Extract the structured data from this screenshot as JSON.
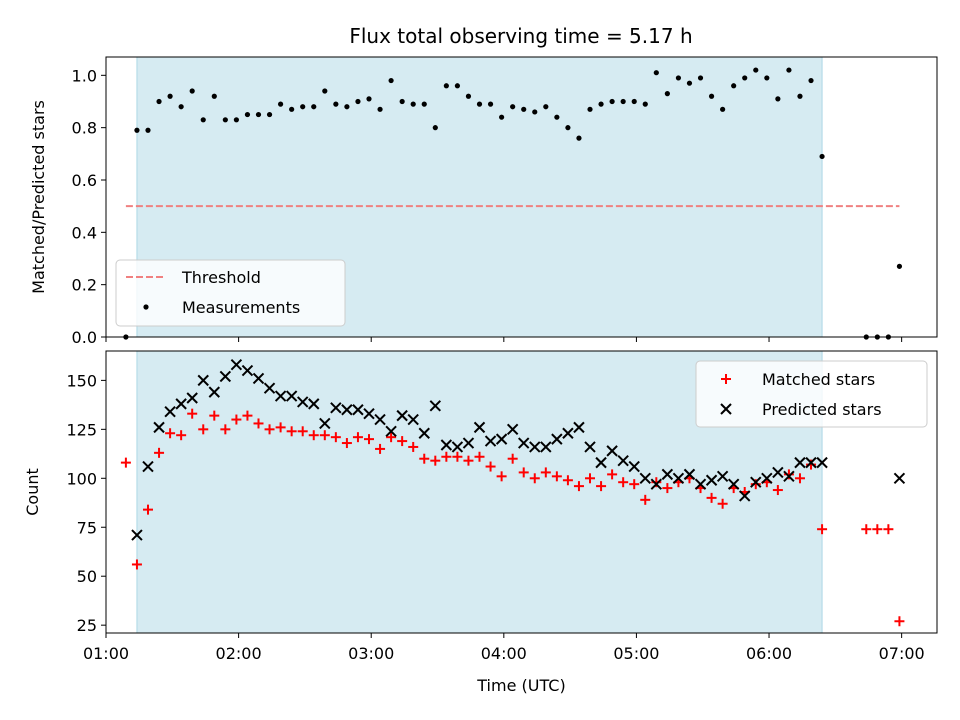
{
  "title": "Flux total observing time = 5.17 h",
  "colors": {
    "shade": "#add8e6",
    "threshold": "#f08080",
    "measurement": "#000000",
    "matched": "#ff0000",
    "predicted": "#000000"
  },
  "chart_data": [
    {
      "type": "scatter",
      "ylabel": "Matched/Predicted stars",
      "ylim": [
        0,
        1.07
      ],
      "yticks": [
        0.0,
        0.2,
        0.4,
        0.6,
        0.8,
        1.0
      ],
      "ytick_labels": [
        "0.0",
        "0.2",
        "0.4",
        "0.6",
        "0.8",
        "1.0"
      ],
      "xlim": [
        "01:00",
        "07:16"
      ],
      "shaded_span": [
        "01:14",
        "06:24"
      ],
      "legend": {
        "position": "lower left",
        "entries": [
          "Threshold",
          "Measurements"
        ]
      },
      "threshold": {
        "name": "Threshold",
        "y": 0.5,
        "x_range": [
          "01:09",
          "06:59"
        ]
      },
      "series": [
        {
          "name": "Measurements",
          "x": [
            "01:09",
            "01:14",
            "01:19",
            "01:24",
            "01:29",
            "01:34",
            "01:39",
            "01:44",
            "01:49",
            "01:54",
            "01:59",
            "02:04",
            "02:09",
            "02:14",
            "02:19",
            "02:24",
            "02:29",
            "02:34",
            "02:39",
            "02:44",
            "02:49",
            "02:54",
            "02:59",
            "03:04",
            "03:09",
            "03:14",
            "03:19",
            "03:24",
            "03:29",
            "03:34",
            "03:39",
            "03:44",
            "03:49",
            "03:54",
            "03:59",
            "04:04",
            "04:09",
            "04:14",
            "04:19",
            "04:24",
            "04:29",
            "04:34",
            "04:39",
            "04:44",
            "04:49",
            "04:54",
            "04:59",
            "05:04",
            "05:09",
            "05:14",
            "05:19",
            "05:24",
            "05:29",
            "05:34",
            "05:39",
            "05:44",
            "05:49",
            "05:54",
            "05:59",
            "06:04",
            "06:09",
            "06:14",
            "06:19",
            "06:24",
            "06:44",
            "06:49",
            "06:54",
            "06:59"
          ],
          "y": [
            0.0,
            0.79,
            0.79,
            0.9,
            0.92,
            0.88,
            0.94,
            0.83,
            0.92,
            0.83,
            0.83,
            0.85,
            0.85,
            0.85,
            0.89,
            0.87,
            0.88,
            0.88,
            0.94,
            0.89,
            0.88,
            0.9,
            0.91,
            0.87,
            0.98,
            0.9,
            0.89,
            0.89,
            0.8,
            0.96,
            0.96,
            0.92,
            0.89,
            0.89,
            0.84,
            0.88,
            0.87,
            0.86,
            0.88,
            0.84,
            0.8,
            0.76,
            0.87,
            0.89,
            0.9,
            0.9,
            0.9,
            0.89,
            1.01,
            0.93,
            0.99,
            0.97,
            0.99,
            0.92,
            0.87,
            0.96,
            0.99,
            1.02,
            0.99,
            0.91,
            1.02,
            0.92,
            0.98,
            0.69,
            0.0,
            0.0,
            0.0,
            0.27
          ]
        }
      ]
    },
    {
      "type": "scatter",
      "xlabel": "Time (UTC)",
      "ylabel": "Count",
      "ylim": [
        21,
        165
      ],
      "yticks": [
        25,
        50,
        75,
        100,
        125,
        150
      ],
      "ytick_labels": [
        "25",
        "50",
        "75",
        "100",
        "125",
        "150"
      ],
      "xlim": [
        "01:00",
        "07:16"
      ],
      "xticks": [
        "01:00",
        "02:00",
        "03:00",
        "04:00",
        "05:00",
        "06:00",
        "07:00"
      ],
      "shaded_span": [
        "01:14",
        "06:24"
      ],
      "legend": {
        "position": "upper right",
        "entries": [
          "Matched stars",
          "Predicted stars"
        ]
      },
      "series": [
        {
          "name": "Matched stars",
          "x": [
            "01:09",
            "01:14",
            "01:19",
            "01:24",
            "01:29",
            "01:34",
            "01:39",
            "01:44",
            "01:49",
            "01:54",
            "01:59",
            "02:04",
            "02:09",
            "02:14",
            "02:19",
            "02:24",
            "02:29",
            "02:34",
            "02:39",
            "02:44",
            "02:49",
            "02:54",
            "02:59",
            "03:04",
            "03:09",
            "03:14",
            "03:19",
            "03:24",
            "03:29",
            "03:34",
            "03:39",
            "03:44",
            "03:49",
            "03:54",
            "03:59",
            "04:04",
            "04:09",
            "04:14",
            "04:19",
            "04:24",
            "04:29",
            "04:34",
            "04:39",
            "04:44",
            "04:49",
            "04:54",
            "04:59",
            "05:04",
            "05:09",
            "05:14",
            "05:19",
            "05:24",
            "05:29",
            "05:34",
            "05:39",
            "05:44",
            "05:49",
            "05:54",
            "05:59",
            "06:04",
            "06:09",
            "06:14",
            "06:19",
            "06:24",
            "06:44",
            "06:49",
            "06:54",
            "06:59"
          ],
          "y": [
            108,
            56,
            84,
            113,
            123,
            122,
            133,
            125,
            132,
            125,
            130,
            132,
            128,
            125,
            126,
            124,
            124,
            122,
            122,
            121,
            118,
            121,
            120,
            115,
            121,
            119,
            116,
            110,
            109,
            111,
            111,
            109,
            111,
            106,
            101,
            110,
            103,
            100,
            103,
            101,
            99,
            96,
            100,
            96,
            102,
            98,
            97,
            89,
            98,
            95,
            98,
            100,
            95,
            90,
            87,
            95,
            93,
            97,
            98,
            94,
            102,
            100,
            107,
            74,
            74,
            74,
            74,
            27
          ]
        },
        {
          "name": "Predicted stars",
          "x": [
            "01:14",
            "01:19",
            "01:24",
            "01:29",
            "01:34",
            "01:39",
            "01:44",
            "01:49",
            "01:54",
            "01:59",
            "02:04",
            "02:09",
            "02:14",
            "02:19",
            "02:24",
            "02:29",
            "02:34",
            "02:39",
            "02:44",
            "02:49",
            "02:54",
            "02:59",
            "03:04",
            "03:09",
            "03:14",
            "03:19",
            "03:24",
            "03:29",
            "03:34",
            "03:39",
            "03:44",
            "03:49",
            "03:54",
            "03:59",
            "04:04",
            "04:09",
            "04:14",
            "04:19",
            "04:24",
            "04:29",
            "04:34",
            "04:39",
            "04:44",
            "04:49",
            "04:54",
            "04:59",
            "05:04",
            "05:09",
            "05:14",
            "05:19",
            "05:24",
            "05:29",
            "05:34",
            "05:39",
            "05:44",
            "05:49",
            "05:54",
            "05:59",
            "06:04",
            "06:09",
            "06:14",
            "06:19",
            "06:24",
            "06:59"
          ],
          "y": [
            71,
            106,
            126,
            134,
            138,
            141,
            150,
            144,
            152,
            158,
            155,
            151,
            146,
            142,
            142,
            139,
            138,
            128,
            136,
            135,
            135,
            133,
            130,
            124,
            132,
            130,
            123,
            137,
            117,
            116,
            118,
            126,
            119,
            120,
            125,
            118,
            116,
            116,
            120,
            123,
            126,
            116,
            108,
            114,
            109,
            106,
            100,
            97,
            102,
            100,
            102,
            97,
            99,
            101,
            97,
            91,
            98,
            100,
            103,
            101,
            108,
            108,
            108,
            100
          ]
        }
      ]
    }
  ]
}
